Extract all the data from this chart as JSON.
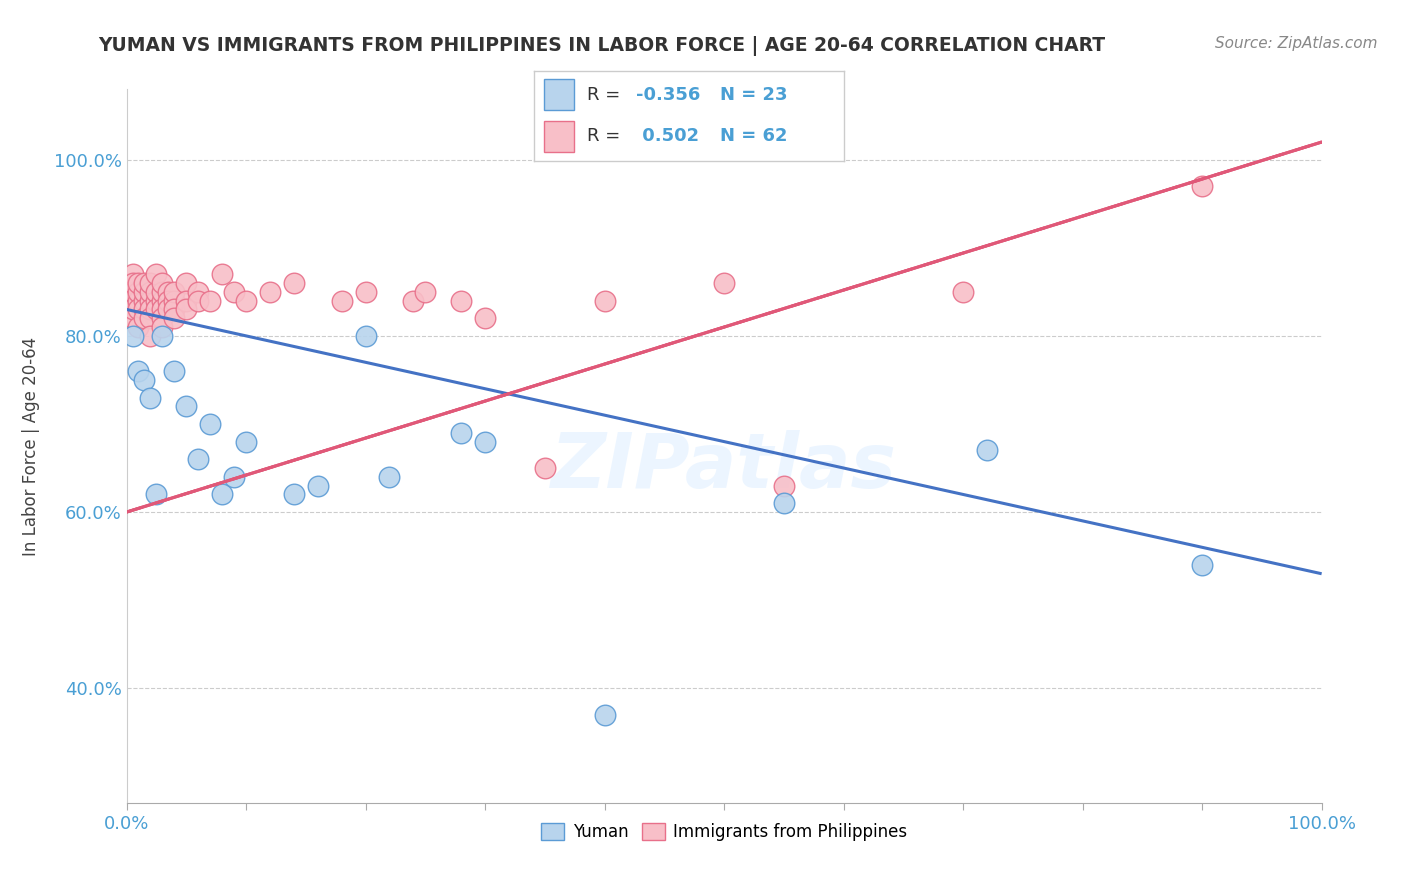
{
  "title": "YUMAN VS IMMIGRANTS FROM PHILIPPINES IN LABOR FORCE | AGE 20-64 CORRELATION CHART",
  "source": "Source: ZipAtlas.com",
  "ylabel": "In Labor Force | Age 20-64",
  "xlim": [
    0.0,
    1.0
  ],
  "ylim": [
    0.27,
    1.08
  ],
  "yticks": [
    0.4,
    0.6,
    0.8,
    1.0
  ],
  "ytick_labels": [
    "40.0%",
    "60.0%",
    "80.0%",
    "100.0%"
  ],
  "xticks": [
    0.0,
    0.1,
    0.2,
    0.3,
    0.4,
    0.5,
    0.6,
    0.7,
    0.8,
    0.9,
    1.0
  ],
  "xtick_labels": [
    "0.0%",
    "",
    "",
    "",
    "",
    "",
    "",
    "",
    "",
    "",
    "100.0%"
  ],
  "watermark": "ZIPatlas",
  "legend_blue_r": "-0.356",
  "legend_blue_n": "23",
  "legend_pink_r": "0.502",
  "legend_pink_n": "62",
  "blue_fill_color": "#b8d4ed",
  "pink_fill_color": "#f8bfc8",
  "blue_edge_color": "#5b9bd5",
  "pink_edge_color": "#e8708a",
  "blue_line_color": "#4472c4",
  "pink_line_color": "#e05878",
  "legend_blue_label": "Yuman",
  "legend_pink_label": "Immigrants from Philippines",
  "blue_scatter_x": [
    0.005,
    0.01,
    0.015,
    0.02,
    0.025,
    0.03,
    0.04,
    0.05,
    0.06,
    0.07,
    0.08,
    0.09,
    0.1,
    0.14,
    0.16,
    0.2,
    0.22,
    0.28,
    0.3,
    0.4,
    0.55,
    0.72,
    0.9
  ],
  "blue_scatter_y": [
    0.8,
    0.76,
    0.75,
    0.73,
    0.62,
    0.8,
    0.76,
    0.72,
    0.66,
    0.7,
    0.62,
    0.64,
    0.68,
    0.62,
    0.63,
    0.8,
    0.64,
    0.69,
    0.68,
    0.37,
    0.61,
    0.67,
    0.54
  ],
  "pink_scatter_x": [
    0.005,
    0.005,
    0.005,
    0.005,
    0.005,
    0.005,
    0.01,
    0.01,
    0.01,
    0.01,
    0.01,
    0.015,
    0.015,
    0.015,
    0.015,
    0.015,
    0.02,
    0.02,
    0.02,
    0.02,
    0.02,
    0.02,
    0.025,
    0.025,
    0.025,
    0.025,
    0.03,
    0.03,
    0.03,
    0.03,
    0.03,
    0.03,
    0.035,
    0.035,
    0.035,
    0.04,
    0.04,
    0.04,
    0.04,
    0.05,
    0.05,
    0.05,
    0.06,
    0.06,
    0.07,
    0.08,
    0.09,
    0.1,
    0.12,
    0.14,
    0.18,
    0.2,
    0.24,
    0.25,
    0.28,
    0.3,
    0.35,
    0.4,
    0.5,
    0.55,
    0.7,
    0.9
  ],
  "pink_scatter_y": [
    0.82,
    0.84,
    0.85,
    0.87,
    0.86,
    0.83,
    0.84,
    0.85,
    0.86,
    0.83,
    0.81,
    0.84,
    0.85,
    0.86,
    0.83,
    0.82,
    0.84,
    0.85,
    0.83,
    0.86,
    0.82,
    0.8,
    0.84,
    0.85,
    0.83,
    0.87,
    0.84,
    0.85,
    0.83,
    0.86,
    0.82,
    0.81,
    0.85,
    0.84,
    0.83,
    0.84,
    0.85,
    0.83,
    0.82,
    0.86,
    0.84,
    0.83,
    0.85,
    0.84,
    0.84,
    0.87,
    0.85,
    0.84,
    0.85,
    0.86,
    0.84,
    0.85,
    0.84,
    0.85,
    0.84,
    0.82,
    0.65,
    0.84,
    0.86,
    0.63,
    0.85,
    0.97
  ],
  "blue_line_x0": 0.0,
  "blue_line_y0": 0.83,
  "blue_line_x1": 1.0,
  "blue_line_y1": 0.53,
  "pink_line_x0": 0.0,
  "pink_line_y0": 0.6,
  "pink_line_x1": 1.0,
  "pink_line_y1": 1.02
}
